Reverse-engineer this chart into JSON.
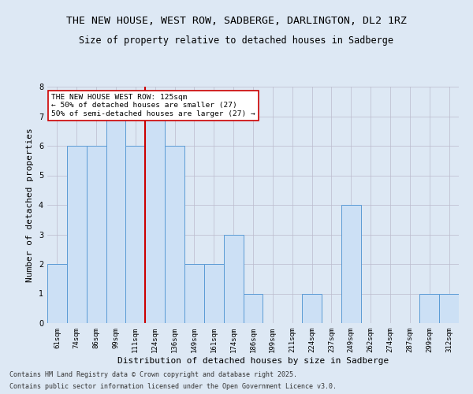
{
  "title_line1": "THE NEW HOUSE, WEST ROW, SADBERGE, DARLINGTON, DL2 1RZ",
  "title_line2": "Size of property relative to detached houses in Sadberge",
  "xlabel": "Distribution of detached houses by size in Sadberge",
  "ylabel": "Number of detached properties",
  "categories": [
    "61sqm",
    "74sqm",
    "86sqm",
    "99sqm",
    "111sqm",
    "124sqm",
    "136sqm",
    "149sqm",
    "161sqm",
    "174sqm",
    "186sqm",
    "199sqm",
    "211sqm",
    "224sqm",
    "237sqm",
    "249sqm",
    "262sqm",
    "274sqm",
    "287sqm",
    "299sqm",
    "312sqm"
  ],
  "values": [
    2,
    6,
    6,
    7,
    6,
    7,
    6,
    2,
    2,
    3,
    1,
    0,
    0,
    1,
    0,
    4,
    0,
    0,
    0,
    1,
    1
  ],
  "bar_color": "#cce0f5",
  "bar_edge_color": "#5b9bd5",
  "highlight_bar_index": 5,
  "highlight_color": "#cc0000",
  "annotation_text": "THE NEW HOUSE WEST ROW: 125sqm\n← 50% of detached houses are smaller (27)\n50% of semi-detached houses are larger (27) →",
  "annotation_box_color": "#ffffff",
  "annotation_box_edge": "#cc0000",
  "ylim": [
    0,
    8
  ],
  "yticks": [
    0,
    1,
    2,
    3,
    4,
    5,
    6,
    7,
    8
  ],
  "grid_color": "#bbbbcc",
  "background_color": "#dde8f4",
  "plot_background": "#dde8f4",
  "footer_line1": "Contains HM Land Registry data © Crown copyright and database right 2025.",
  "footer_line2": "Contains public sector information licensed under the Open Government Licence v3.0.",
  "title_fontsize": 9.5,
  "subtitle_fontsize": 8.5,
  "axis_label_fontsize": 8,
  "tick_fontsize": 6.5,
  "annotation_fontsize": 6.8,
  "footer_fontsize": 6
}
